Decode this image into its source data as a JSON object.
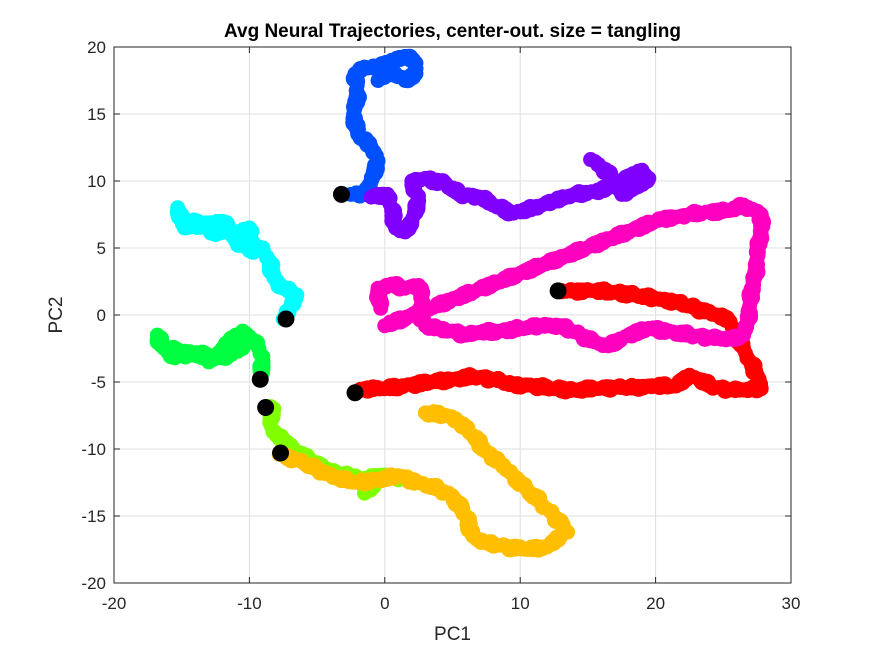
{
  "chart_data": {
    "type": "scatter",
    "title": "Avg Neural Trajectories, center-out. size = tangling",
    "xlabel": "PC1",
    "ylabel": "PC2",
    "xlim": [
      -20,
      30
    ],
    "ylim": [
      -20,
      20
    ],
    "xticks": [
      -20,
      -10,
      0,
      10,
      20,
      30
    ],
    "yticks": [
      -20,
      -15,
      -10,
      -5,
      0,
      5,
      10,
      15,
      20
    ],
    "grid": true,
    "start_marker_color": "#000000",
    "series": [
      {
        "color": "#0050ff",
        "points": [
          [
            -2.5,
            9.0
          ],
          [
            -1.5,
            9.0
          ],
          [
            -1.0,
            10.0
          ],
          [
            -0.5,
            11.5
          ],
          [
            -1.0,
            12.5
          ],
          [
            -2.0,
            13.5
          ],
          [
            -2.3,
            15.0
          ],
          [
            -2.0,
            16.5
          ],
          [
            -2.2,
            18.0
          ],
          [
            -1.5,
            18.5
          ],
          [
            -0.5,
            18.5
          ],
          [
            0.5,
            19.0
          ],
          [
            1.5,
            19.3
          ],
          [
            2.3,
            18.8
          ],
          [
            2.3,
            18.0
          ],
          [
            1.5,
            17.5
          ],
          [
            0.5,
            18.2
          ],
          [
            -0.5,
            17.5
          ]
        ]
      },
      {
        "color": "#7f00ff",
        "points": [
          [
            -1.0,
            8.8
          ],
          [
            0.2,
            9.0
          ],
          [
            0.5,
            8.0
          ],
          [
            0.8,
            6.5
          ],
          [
            1.5,
            6.2
          ],
          [
            2.0,
            7.0
          ],
          [
            2.5,
            8.5
          ],
          [
            2.0,
            10.0
          ],
          [
            3.0,
            10.2
          ],
          [
            4.5,
            9.8
          ],
          [
            5.5,
            9.0
          ],
          [
            7.0,
            8.8
          ],
          [
            8.0,
            8.2
          ],
          [
            9.5,
            7.6
          ],
          [
            11.0,
            8.0
          ],
          [
            12.5,
            8.5
          ],
          [
            14.0,
            9.0
          ],
          [
            15.5,
            9.2
          ],
          [
            16.5,
            9.5
          ],
          [
            17.5,
            10.0
          ],
          [
            19.0,
            10.8
          ],
          [
            19.5,
            10.2
          ],
          [
            18.5,
            9.5
          ],
          [
            17.5,
            9.0
          ],
          [
            17.0,
            10.0
          ],
          [
            16.0,
            11.0
          ],
          [
            15.2,
            11.6
          ]
        ]
      },
      {
        "color": "#00ffff",
        "points": [
          [
            -7.5,
            -0.3
          ],
          [
            -7.0,
            0.5
          ],
          [
            -6.5,
            1.5
          ],
          [
            -7.5,
            2.0
          ],
          [
            -8.2,
            2.8
          ],
          [
            -8.5,
            4.0
          ],
          [
            -9.0,
            5.0
          ],
          [
            -10.0,
            4.8
          ],
          [
            -11.0,
            5.5
          ],
          [
            -11.5,
            6.5
          ],
          [
            -12.5,
            6.0
          ],
          [
            -13.0,
            6.5
          ],
          [
            -13.8,
            7.0
          ],
          [
            -14.5,
            6.8
          ],
          [
            -15.0,
            7.5
          ],
          [
            -15.3,
            8.0
          ],
          [
            -14.8,
            6.5
          ],
          [
            -12.0,
            7.0
          ],
          [
            -11.0,
            6.0
          ],
          [
            -10.0,
            6.5
          ],
          [
            -9.8,
            5.5
          ]
        ]
      },
      {
        "color": "#00ff40",
        "points": [
          [
            -9.2,
            -4.7
          ],
          [
            -9.0,
            -3.5
          ],
          [
            -9.3,
            -2.5
          ],
          [
            -9.8,
            -1.8
          ],
          [
            -10.5,
            -1.2
          ],
          [
            -11.0,
            -1.5
          ],
          [
            -11.5,
            -2.0
          ],
          [
            -12.0,
            -2.5
          ],
          [
            -12.5,
            -3.0
          ],
          [
            -13.0,
            -3.5
          ],
          [
            -13.5,
            -3.2
          ],
          [
            -14.0,
            -3.0
          ],
          [
            -15.0,
            -3.0
          ],
          [
            -15.5,
            -3.2
          ],
          [
            -16.0,
            -2.8
          ],
          [
            -16.5,
            -2.3
          ],
          [
            -16.8,
            -1.5
          ],
          [
            -16.3,
            -2.5
          ],
          [
            -12.0,
            -3.2
          ],
          [
            -10.5,
            -2.5
          ]
        ]
      },
      {
        "color": "#80ff00",
        "points": [
          [
            -8.8,
            -6.9
          ],
          [
            -8.2,
            -7.0
          ],
          [
            -8.5,
            -8.0
          ],
          [
            -8.0,
            -9.0
          ],
          [
            -7.2,
            -9.5
          ],
          [
            -6.5,
            -10.3
          ],
          [
            -5.5,
            -10.8
          ],
          [
            -4.5,
            -11.5
          ],
          [
            -3.5,
            -11.8
          ],
          [
            -2.5,
            -12.0
          ],
          [
            -1.5,
            -12.2
          ],
          [
            -0.8,
            -12.8
          ],
          [
            -1.5,
            -13.3
          ],
          [
            -1.0,
            -12.0
          ],
          [
            0.5,
            -12.0
          ],
          [
            1.0,
            -12.3
          ]
        ]
      },
      {
        "color": "#ffbf00",
        "points": [
          [
            -7.8,
            -10.4
          ],
          [
            -6.5,
            -10.8
          ],
          [
            -5.0,
            -11.5
          ],
          [
            -3.5,
            -12.2
          ],
          [
            -2.0,
            -12.5
          ],
          [
            -0.5,
            -12.3
          ],
          [
            1.0,
            -12.0
          ],
          [
            2.5,
            -12.5
          ],
          [
            4.0,
            -13.0
          ],
          [
            5.0,
            -13.5
          ],
          [
            6.0,
            -15.0
          ],
          [
            6.5,
            -16.5
          ],
          [
            7.5,
            -17.0
          ],
          [
            9.0,
            -17.3
          ],
          [
            10.5,
            -17.5
          ],
          [
            12.0,
            -17.3
          ],
          [
            13.0,
            -16.5
          ],
          [
            13.5,
            -16.2
          ],
          [
            12.5,
            -15.0
          ],
          [
            11.5,
            -14.0
          ],
          [
            10.5,
            -13.0
          ],
          [
            9.5,
            -12.0
          ],
          [
            8.5,
            -11.0
          ],
          [
            7.5,
            -10.2
          ],
          [
            6.5,
            -9.0
          ],
          [
            5.5,
            -8.0
          ],
          [
            4.5,
            -7.5
          ],
          [
            3.0,
            -7.3
          ]
        ]
      },
      {
        "color": "#ff0000",
        "points": [
          [
            -2.2,
            -5.8
          ],
          [
            -1.5,
            -5.5
          ],
          [
            0.0,
            -5.5
          ],
          [
            2.0,
            -5.2
          ],
          [
            3.5,
            -5.0
          ],
          [
            5.0,
            -4.8
          ],
          [
            6.5,
            -4.6
          ],
          [
            8.0,
            -4.8
          ],
          [
            9.5,
            -5.2
          ],
          [
            11.0,
            -5.3
          ],
          [
            12.5,
            -5.5
          ],
          [
            14.0,
            -5.6
          ],
          [
            15.5,
            -5.5
          ],
          [
            17.0,
            -5.4
          ],
          [
            18.5,
            -5.4
          ],
          [
            20.0,
            -5.3
          ],
          [
            21.5,
            -5.3
          ],
          [
            22.5,
            -4.5
          ],
          [
            23.2,
            -4.8
          ],
          [
            24.0,
            -5.3
          ],
          [
            25.5,
            -5.6
          ],
          [
            26.5,
            -5.6
          ],
          [
            27.8,
            -5.5
          ],
          [
            27.5,
            -4.5
          ],
          [
            27.0,
            -3.5
          ],
          [
            26.5,
            -2.5
          ],
          [
            26.0,
            -1.5
          ],
          [
            25.5,
            -0.5
          ],
          [
            24.5,
            0.0
          ],
          [
            23.0,
            0.5
          ],
          [
            21.5,
            1.0
          ],
          [
            20.0,
            1.2
          ],
          [
            18.5,
            1.5
          ],
          [
            17.0,
            1.7
          ],
          [
            15.5,
            1.8
          ],
          [
            14.0,
            1.8
          ],
          [
            12.8,
            1.8
          ]
        ]
      },
      {
        "color": "#ff00bf",
        "points": [
          [
            -0.3,
            0.5
          ],
          [
            -0.5,
            2.0
          ],
          [
            0.5,
            2.3
          ],
          [
            1.5,
            2.0
          ],
          [
            2.5,
            2.2
          ],
          [
            2.8,
            1.0
          ],
          [
            2.5,
            0.0
          ],
          [
            3.0,
            -0.8
          ],
          [
            4.0,
            -1.0
          ],
          [
            5.0,
            -1.2
          ],
          [
            6.0,
            -1.5
          ],
          [
            7.0,
            -1.3
          ],
          [
            8.5,
            -1.2
          ],
          [
            10.0,
            -1.0
          ],
          [
            11.5,
            -0.8
          ],
          [
            13.0,
            -0.8
          ],
          [
            14.5,
            -1.5
          ],
          [
            15.5,
            -2.0
          ],
          [
            16.5,
            -2.3
          ],
          [
            18.0,
            -1.5
          ],
          [
            19.5,
            -1.0
          ],
          [
            21.0,
            -1.2
          ],
          [
            22.5,
            -1.5
          ],
          [
            24.0,
            -1.7
          ],
          [
            25.5,
            -1.8
          ],
          [
            26.5,
            -1.5
          ],
          [
            26.8,
            -0.5
          ],
          [
            27.0,
            1.0
          ],
          [
            27.2,
            2.5
          ],
          [
            27.5,
            3.5
          ],
          [
            27.5,
            5.0
          ],
          [
            27.8,
            6.0
          ],
          [
            27.8,
            7.5
          ],
          [
            26.5,
            8.2
          ],
          [
            25.5,
            7.8
          ],
          [
            24.0,
            7.7
          ],
          [
            22.5,
            7.5
          ],
          [
            21.5,
            7.3
          ],
          [
            20.5,
            7.2
          ],
          [
            0.0,
            -0.8
          ],
          [
            0.8,
            -0.5
          ],
          [
            1.5,
            -0.3
          ]
        ]
      }
    ],
    "start_points": [
      [
        -3.2,
        9.0
      ],
      [
        -7.3,
        -0.3
      ],
      [
        -9.2,
        -4.8
      ],
      [
        -8.8,
        -6.9
      ],
      [
        -7.7,
        -10.3
      ],
      [
        -2.2,
        -5.8
      ],
      [
        12.8,
        1.8
      ]
    ]
  }
}
